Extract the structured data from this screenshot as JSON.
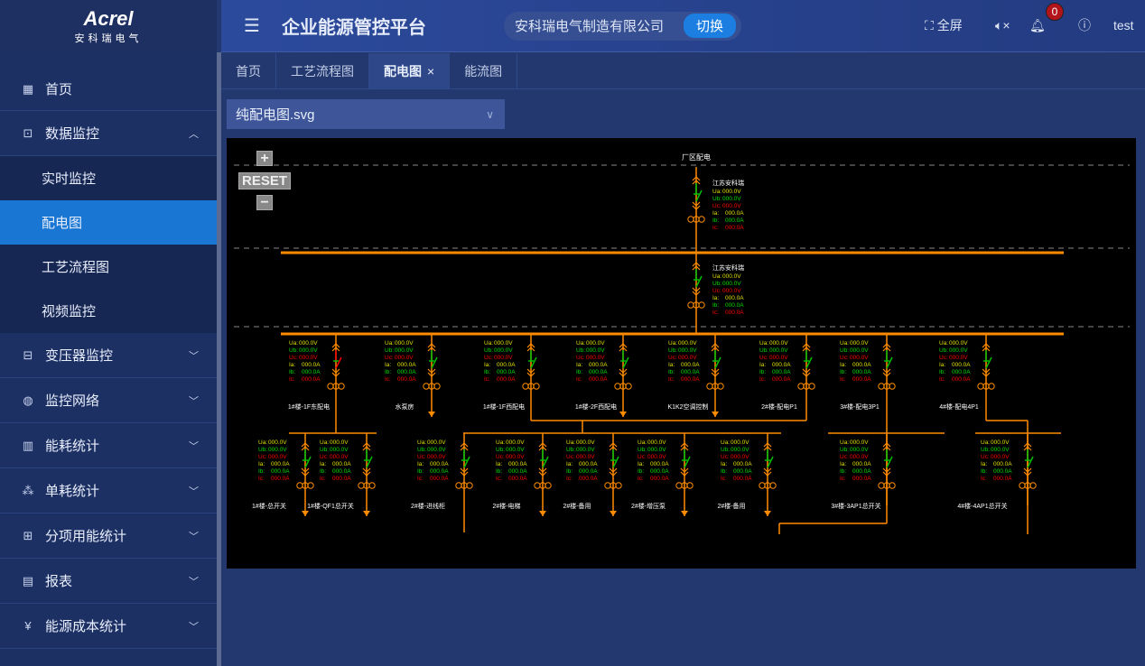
{
  "sidebar": {
    "logo": "Acrel",
    "logo_sub": "安科瑞电气",
    "items": [
      {
        "label": "首页",
        "icon": "home-icon",
        "glyph": "▦"
      },
      {
        "label": "数据监控",
        "icon": "monitor-icon",
        "glyph": "⊡",
        "expanded": true,
        "children": [
          "实时监控",
          "配电图",
          "工艺流程图",
          "视频监控"
        ],
        "active_child": "配电图"
      },
      {
        "label": "变压器监控",
        "icon": "transformer-icon",
        "glyph": "⊟"
      },
      {
        "label": "监控网络",
        "icon": "network-icon",
        "glyph": "◍"
      },
      {
        "label": "能耗统计",
        "icon": "bar-chart-icon",
        "glyph": "▥"
      },
      {
        "label": "单耗统计",
        "icon": "nodes-icon",
        "glyph": "⁂"
      },
      {
        "label": "分项用能统计",
        "icon": "grid-icon",
        "glyph": "⊞"
      },
      {
        "label": "报表",
        "icon": "report-icon",
        "glyph": "▤"
      },
      {
        "label": "能源成本统计",
        "icon": "yen-icon",
        "glyph": "¥"
      }
    ]
  },
  "header": {
    "title": "企业能源管控平台",
    "company": "安科瑞电气制造有限公司",
    "switch_label": "切换",
    "fullscreen": "全屏",
    "notifications": "0",
    "user": "test"
  },
  "tabs": [
    {
      "label": "首页"
    },
    {
      "label": "工艺流程图"
    },
    {
      "label": "配电图",
      "active": true
    },
    {
      "label": "能流图"
    }
  ],
  "file_select": "纯配电图.svg",
  "diagram": {
    "zoom_in": "+",
    "reset": "RESET",
    "zoom_out": "−",
    "top_label": "厂区配电",
    "colors": {
      "bus": "#ff8c00",
      "switch": "#00c000",
      "ua": "#e0e000",
      "ub": "#00e000",
      "uc": "#ff0000",
      "ia": "#e0e000",
      "ib": "#00e000",
      "ic": "#ff0000",
      "label": "#ffffff"
    },
    "readings": [
      {
        "k": "Ua:",
        "v": "000.0V"
      },
      {
        "k": "Ub:",
        "v": "000.0V"
      },
      {
        "k": "Uc:",
        "v": "000.0V"
      },
      {
        "k": "Ia:",
        "v": "000.0A"
      },
      {
        "k": "Ib:",
        "v": "000.0A"
      },
      {
        "k": "Ic:",
        "v": "000.0A"
      }
    ],
    "incomers": [
      {
        "name": "江苏安科瑞"
      },
      {
        "name": "江苏安科瑞"
      }
    ],
    "feeders_level1": [
      {
        "name": "1#楼-1F东配电",
        "fault": true
      },
      {
        "name": "水泵房"
      },
      {
        "name": "1#楼-1F西配电"
      },
      {
        "name": "1#楼-2F西配电"
      },
      {
        "name": "K1K2空调控制"
      },
      {
        "name": "2#楼-配电P1"
      },
      {
        "name": "3#楼-配电3P1"
      },
      {
        "name": "4#楼-配电4P1"
      }
    ],
    "feeders_level2": [
      {
        "name": "1#楼-总开关"
      },
      {
        "name": "1#楼-QF1总开关"
      },
      {
        "name": "2#楼-进线柜"
      },
      {
        "name": "2#楼-电梯"
      },
      {
        "name": "2#楼-备用"
      },
      {
        "name": "2#楼-增压泵"
      },
      {
        "name": "2#楼-备用"
      },
      {
        "name": "3#楼-3AP1总开关"
      },
      {
        "name": "4#楼-4AP1总开关"
      }
    ]
  }
}
